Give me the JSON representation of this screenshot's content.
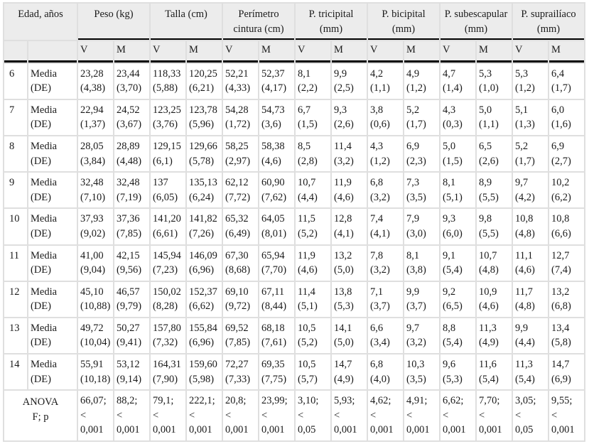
{
  "table": {
    "colors": {
      "header_bg": "#ececec",
      "grid": "#dfdfdf",
      "rule": "#000000",
      "cell_bg": "#ffffff",
      "text": "#1a1a1a"
    },
    "header_groups": [
      {
        "label": "Edad, años",
        "subs": [
          "",
          ""
        ]
      },
      {
        "label": "Peso (kg)",
        "subs": [
          "V",
          "M"
        ]
      },
      {
        "label": "Talla (cm)",
        "subs": [
          "V",
          "M"
        ]
      },
      {
        "label": "Perímetro cintura (cm)",
        "subs": [
          "V",
          "M"
        ]
      },
      {
        "label": "P. tricipital (mm)",
        "subs": [
          "V",
          "M"
        ]
      },
      {
        "label": "P. bicipital (mm)",
        "subs": [
          "V",
          "M"
        ]
      },
      {
        "label": "P. subescapular (mm)",
        "subs": [
          "V",
          "M"
        ]
      },
      {
        "label": "P. suprailíaco (mm)",
        "subs": [
          "V",
          "M"
        ]
      }
    ],
    "rows": [
      {
        "age": "6",
        "stat": "Media\n(DE)",
        "cells": [
          "23,28\n(4,38)",
          "23,44\n(3,70)",
          "118,33\n(5,88)",
          "120,25\n(6,21)",
          "52,21\n(4,33)",
          "52,37\n(4,17)",
          "8,1\n(2,2)",
          "9,9\n(2,5)",
          "4,2\n(1,1)",
          "4,9\n(1,2)",
          "4,7\n(1,4)",
          "5,3\n(1,0)",
          "5,3\n(1,2)",
          "6,4\n(1,7)"
        ]
      },
      {
        "age": "7",
        "stat": "Media\n(DE)",
        "cells": [
          "22,94\n(1,37)",
          "24,52\n(3,67)",
          "123,25\n(3,76)",
          "123,78\n(5,96)",
          "54,28\n(1,72)",
          "54,73\n(3,6)",
          "6,7\n(1,5)",
          "9,3\n(2,6)",
          "3,8\n(0,6)",
          "5,2\n(1,7)",
          "4,3\n(0,3)",
          "5,0\n(1,1)",
          "5,1\n(1,3)",
          "6,0\n(1,6)"
        ]
      },
      {
        "age": "8",
        "stat": "Media\n(DE)",
        "cells": [
          "28,05\n(3,84)",
          "28,89\n(4,48)",
          "129,15\n(6,1)",
          "129,66\n(5,78)",
          "58,25\n(2,97)",
          "58,38\n(4,6)",
          "8,5\n(2,8)",
          "11,4\n(3,2)",
          "4,3\n(1,2)",
          "6,9\n(2,3)",
          "5,0\n(1,5)",
          "6,5\n(2,6)",
          "5,2\n(1,7)",
          "6,9\n(2,7)"
        ]
      },
      {
        "age": "9",
        "stat": "Media\n(DE)",
        "cells": [
          "32,48\n(7,10)",
          "32,48\n(7,19)",
          "137\n(6,05)",
          "135,13\n(6,24)",
          "62,12\n(7,72)",
          "60,90\n(7,62)",
          "10,7\n(4,4)",
          "11,9\n(4,6)",
          "6,8\n(3,2)",
          "7,3\n(3,5)",
          "8,1\n(5,1)",
          "8,9\n(5,5)",
          "9,7\n(4,2)",
          "10,2\n(6,2)"
        ]
      },
      {
        "age": "10",
        "stat": "Media\n(DE)",
        "cells": [
          "37,93\n(9,02)",
          "37,36\n(7,85)",
          "141,20\n(6,61)",
          "141,82\n(7,26)",
          "65,32\n(6,49)",
          "64,05\n(8,01)",
          "11,5\n(5,2)",
          "12,8\n(4,1)",
          "7,4\n(4,1)",
          "7,9\n(3,0)",
          "9,3\n(6,0)",
          "9,8\n(5,5)",
          "10,8\n(4,8)",
          "10,8\n(6,6)"
        ]
      },
      {
        "age": "11",
        "stat": "Media\n(DE)",
        "cells": [
          "41,00\n(9,04)",
          "42,15\n(9,56)",
          "145,94\n(7,23)",
          "146,09\n(6,96)",
          "67,30\n(8,68)",
          "65,94\n(7,70)",
          "11,9\n(4,6)",
          "13,2\n(5,0)",
          "7,8\n(3,2)",
          "8,1\n(3,8)",
          "9,1\n(5,4)",
          "10,7\n(4,8)",
          "11,1\n(4,6)",
          "12,7\n(7,4)"
        ]
      },
      {
        "age": "12",
        "stat": "Media\n(DE)",
        "cells": [
          "45,10\n(10,88)",
          "46,57\n(9,79)",
          "150,02\n(8,28)",
          "152,37\n(6,62)",
          "69,10\n(9,72)",
          "67,11\n(8,44)",
          "11,4\n(5,1)",
          "13,8\n(5,3)",
          "7,1\n(3,7)",
          "9,9\n(3,7)",
          "9,2\n(6,5)",
          "10,9\n(4,6)",
          "11,7\n(4,8)",
          "13,2\n(6,8)"
        ]
      },
      {
        "age": "13",
        "stat": "Media\n(DE)",
        "cells": [
          "49,72\n(10,04)",
          "50,27\n(9,41)",
          "157,80\n(7,32)",
          "155,84\n(6,96)",
          "69,52\n(7,85)",
          "68,18\n(7,61)",
          "10,5\n(5,2)",
          "14,1\n(5,0)",
          "6,6\n(3,4)",
          "9,7\n(3,2)",
          "8,8\n(5,4)",
          "11,3\n(4,9)",
          "9,9\n(4,4)",
          "13,4\n(5,8)"
        ]
      },
      {
        "age": "14",
        "stat": "Media\n(DE)",
        "cells": [
          "55,91\n(10,18)",
          "53,12\n(9,14)",
          "164,31\n(7,90)",
          "159,60\n(5,98)",
          "72,27\n(7,33)",
          "69,35\n(7,75)",
          "10,5\n(5,7)",
          "14,7\n(4,9)",
          "6,8\n(4,0)",
          "10,3\n(3,5)",
          "9,6\n(5,3)",
          "11,6\n(5,4)",
          "11,3\n(5,4)",
          "14,7\n(6,9)"
        ]
      }
    ],
    "anova": {
      "label": "ANOVA\nF; p",
      "cells": [
        "66,07;\n<\n0,001",
        "88,2;\n<\n0,001",
        "79,1;\n<\n0,001",
        "222,1;\n<\n0,001",
        "20,8;\n<\n0,001",
        "23,99;\n<\n0,001",
        "3,10;\n<\n0,05",
        "5,93;\n<\n0,001",
        "4,62;\n<\n0,001",
        "4,91;\n<\n0,001",
        "6,62;\n<\n0,001",
        "7,70;\n<\n0,001",
        "3,05;\n<\n0,05",
        "9,55;\n<\n0,001"
      ]
    }
  }
}
